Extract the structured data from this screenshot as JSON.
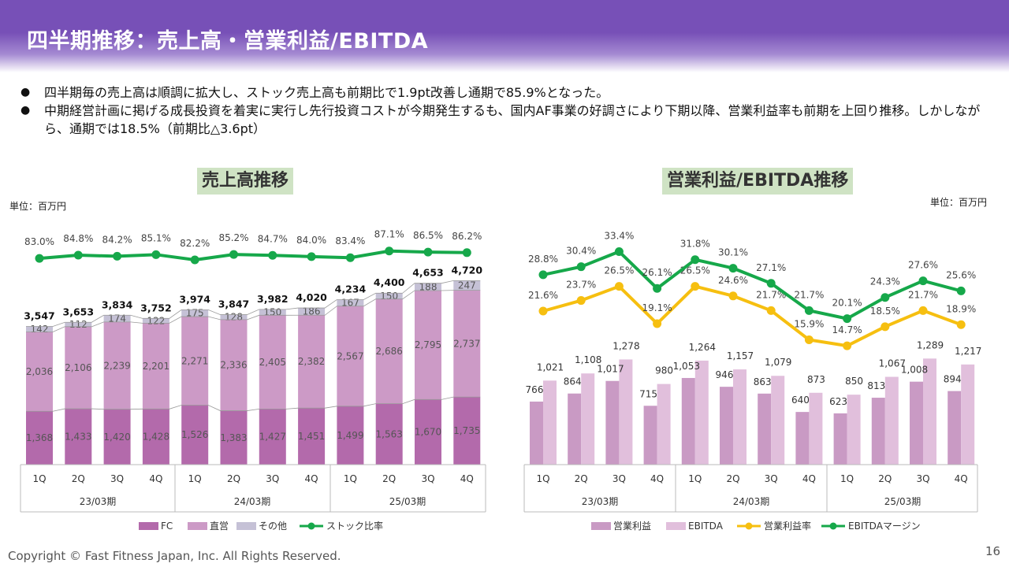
{
  "header": {
    "title": "四半期推移：売上高・営業利益/EBITDA"
  },
  "bullets": [
    "四半期毎の売上高は順調に拡大し、ストック売上高も前期比で1.9pt改善し通期で85.9%となった。",
    "中期経営計画に掲げる成長投資を着実に実行し先行投資コストが今期発生するも、国内AF事業の好調さにより下期以降、営業利益率も前期を上回り推移。しかしながら、通期では18.5%（前期比△3.6pt）"
  ],
  "footer": {
    "copyright": "Copyright © Fast Fitness Japan, Inc. All Rights Reserved.",
    "page": "16"
  },
  "colors": {
    "fc": "#b36aab",
    "direct": "#cc9ac6",
    "other": "#c5c1d6",
    "stock": "#16a84a",
    "op_profit": "#c99ac4",
    "ebitda": "#e1bfdc",
    "op_margin": "#f6bf10",
    "ebitda_margin": "#16a84a"
  },
  "chart_data": [
    {
      "type": "bar",
      "title": "売上高推移",
      "unit": "単位：百万円",
      "categories": [
        "1Q",
        "2Q",
        "3Q",
        "4Q",
        "1Q",
        "2Q",
        "3Q",
        "4Q",
        "1Q",
        "2Q",
        "3Q",
        "4Q"
      ],
      "groups": [
        "23/03期",
        "24/03期",
        "25/03期"
      ],
      "series": [
        {
          "name": "FC",
          "values": [
            1368,
            1433,
            1420,
            1428,
            1526,
            1383,
            1427,
            1451,
            1499,
            1563,
            1670,
            1735
          ]
        },
        {
          "name": "直営",
          "values": [
            2036,
            2106,
            2239,
            2201,
            2271,
            2336,
            2405,
            2382,
            2567,
            2686,
            2795,
            2737
          ]
        },
        {
          "name": "その他",
          "values": [
            142,
            112,
            174,
            122,
            175,
            128,
            150,
            186,
            167,
            150,
            188,
            247
          ]
        }
      ],
      "totals": [
        3547,
        3653,
        3834,
        3752,
        3974,
        3847,
        3982,
        4020,
        4234,
        4400,
        4653,
        4720
      ],
      "totals_labels": [
        "3,547",
        "3,653",
        "3,834",
        "3,752",
        "3,974",
        "3,847",
        "3,982",
        "4,020",
        "4,234",
        "4,400",
        "4,653",
        "4,720"
      ],
      "line": {
        "name": "ストック比率",
        "values": [
          83.0,
          84.8,
          84.2,
          85.1,
          82.2,
          85.2,
          84.7,
          84.0,
          83.4,
          87.1,
          86.5,
          86.2
        ],
        "labels": [
          "83.0%",
          "84.8%",
          "84.2%",
          "85.1%",
          "82.2%",
          "85.2%",
          "84.7%",
          "84.0%",
          "83.4%",
          "87.1%",
          "86.5%",
          "86.2%"
        ]
      },
      "legend": [
        "FC",
        "直営",
        "その他",
        "ストック比率"
      ],
      "legend_position": "bottom"
    },
    {
      "type": "bar",
      "title": "営業利益/EBITDA推移",
      "unit": "単位：百万円",
      "categories": [
        "1Q",
        "2Q",
        "3Q",
        "4Q",
        "1Q",
        "2Q",
        "3Q",
        "4Q",
        "1Q",
        "2Q",
        "3Q",
        "4Q"
      ],
      "groups": [
        "23/03期",
        "24/03期",
        "25/03期"
      ],
      "series": [
        {
          "name": "営業利益",
          "values": [
            766,
            864,
            1017,
            715,
            1053,
            946,
            863,
            640,
            623,
            813,
            1008,
            894
          ]
        },
        {
          "name": "EBITDA",
          "values": [
            1021,
            1108,
            1278,
            980,
            1264,
            1157,
            1079,
            873,
            850,
            1067,
            1289,
            1217
          ]
        }
      ],
      "lines": [
        {
          "name": "営業利益率",
          "values": [
            21.6,
            23.7,
            26.5,
            19.1,
            26.5,
            24.6,
            21.7,
            15.9,
            14.7,
            18.5,
            21.7,
            18.9
          ],
          "labels": [
            "21.6%",
            "23.7%",
            "26.5%",
            "19.1%",
            "26.5%",
            "24.6%",
            "21.7%",
            "15.9%",
            "14.7%",
            "18.5%",
            "21.7%",
            "18.9%"
          ]
        },
        {
          "name": "EBITDAマージン",
          "values": [
            28.8,
            30.4,
            33.4,
            26.1,
            31.8,
            30.1,
            27.1,
            21.7,
            20.1,
            24.3,
            27.6,
            25.6
          ],
          "labels": [
            "28.8%",
            "30.4%",
            "33.4%",
            "26.1%",
            "31.8%",
            "30.1%",
            "27.1%",
            "21.7%",
            "20.1%",
            "24.3%",
            "27.6%",
            "25.6%"
          ]
        }
      ],
      "legend": [
        "営業利益",
        "EBITDA",
        "営業利益率",
        "EBITDAマージン"
      ],
      "legend_position": "bottom"
    }
  ]
}
